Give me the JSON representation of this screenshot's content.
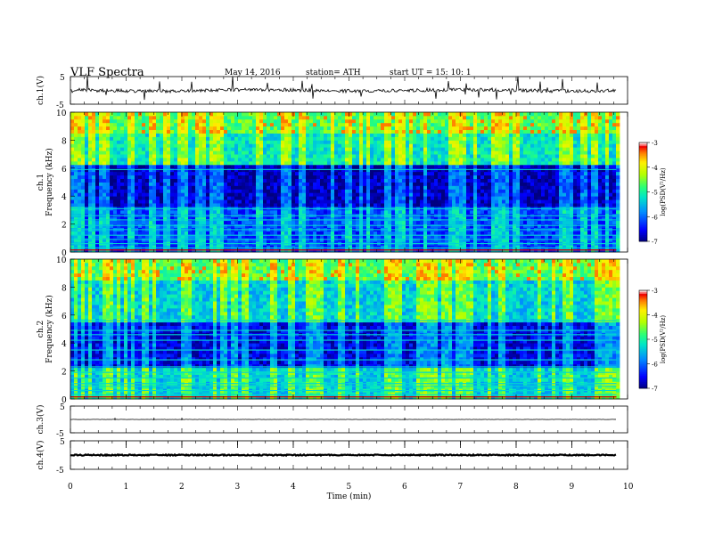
{
  "header": {
    "title": "VLF  Spectra",
    "date": "May 14, 2016",
    "station": "station= ATH",
    "start": "start  UT  =    15: 10: 1"
  },
  "chart_data": [
    {
      "type": "line",
      "panel": "ch1-waveform",
      "ylabel": "ch.1(V)",
      "ylim": [
        -5,
        5
      ],
      "yticks": [
        "5",
        "-5"
      ],
      "xlim": [
        0,
        10
      ],
      "data_xrange": [
        0,
        9.8
      ],
      "description_values": {
        "baseline_v": 0,
        "noise_amplitude_v": 0.6,
        "spike_max_v": 4.8
      }
    },
    {
      "type": "heatmap",
      "panel": "ch1-spectrogram",
      "ylabel": "ch.1",
      "ylabel2": "Frequency  (kHz)",
      "ylim": [
        0,
        10
      ],
      "yticks": [
        "0",
        "2",
        "4",
        "6",
        "8",
        "10"
      ],
      "xlim": [
        0,
        10
      ],
      "data_xrange": [
        0,
        9.8
      ],
      "colorbar": {
        "label": "log(PSD(V²/Hz)",
        "range": [
          -7,
          -3
        ],
        "ticks": [
          "-3",
          "-4",
          "-5",
          "-6",
          "-7"
        ],
        "colors": [
          "#000080",
          "#0000ff",
          "#00a0ff",
          "#00ffa0",
          "#a0ff00",
          "#ffff00",
          "#ff8000",
          "#ff0000",
          "#ffffff"
        ]
      },
      "bands_khz": [
        {
          "from": 0,
          "to": 3.2,
          "log_psd": -6.2
        },
        {
          "from": 3.2,
          "to": 6.2,
          "log_psd": -6.8
        },
        {
          "from": 6.2,
          "to": 8.6,
          "log_psd": -5.2
        },
        {
          "from": 8.6,
          "to": 10,
          "log_psd": -4.7
        }
      ]
    },
    {
      "type": "heatmap",
      "panel": "ch2-spectrogram",
      "ylabel": "ch.2",
      "ylabel2": "Frequency  (kHz)",
      "ylim": [
        0,
        10
      ],
      "yticks": [
        "0",
        "2",
        "4",
        "6",
        "8",
        "10"
      ],
      "xlim": [
        0,
        10
      ],
      "data_xrange": [
        0,
        9.8
      ],
      "colorbar": {
        "label": "log(PSD(V²/Hz)",
        "range": [
          -7,
          -3
        ],
        "ticks": [
          "-3",
          "-4",
          "-5",
          "-6",
          "-7"
        ]
      },
      "bands_khz": [
        {
          "from": 0,
          "to": 2.2,
          "log_psd": -5.4
        },
        {
          "from": 2.2,
          "to": 5.5,
          "log_psd": -6.6
        },
        {
          "from": 5.5,
          "to": 8.6,
          "log_psd": -5.4
        },
        {
          "from": 8.6,
          "to": 10,
          "log_psd": -4.7
        }
      ]
    },
    {
      "type": "line",
      "panel": "ch3-waveform",
      "ylabel": "ch.3(V)",
      "ylim": [
        -5,
        5
      ],
      "yticks": [
        "5",
        "-5"
      ],
      "description_values": {
        "baseline_v": 0,
        "noise_amplitude_v": 0.05
      }
    },
    {
      "type": "line",
      "panel": "ch4-waveform",
      "ylabel": "ch.4(V)",
      "ylim": [
        -5,
        5
      ],
      "yticks": [
        "5",
        "-5"
      ],
      "description_values": {
        "baseline_v": 0,
        "noise_amplitude_v": 0.2
      }
    }
  ],
  "xaxis": {
    "label": "Time  (min)",
    "ticks": [
      "0",
      "1",
      "2",
      "3",
      "4",
      "5",
      "6",
      "7",
      "8",
      "9",
      "10"
    ]
  }
}
